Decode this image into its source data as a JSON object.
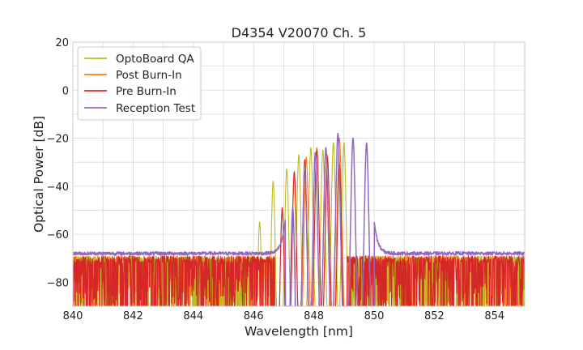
{
  "chart_data": {
    "type": "line",
    "title": "D4354 V20070 Ch. 5",
    "xlabel": "Wavelength [nm]",
    "ylabel": "Optical Power [dB]",
    "xlim": [
      840,
      855
    ],
    "ylim": [
      -90,
      20
    ],
    "x_ticks": [
      840,
      842,
      844,
      846,
      848,
      850,
      852,
      854
    ],
    "y_ticks": [
      -80,
      -60,
      -40,
      -20,
      0,
      20
    ],
    "x_tick_labels": [
      "840",
      "842",
      "844",
      "846",
      "848",
      "850",
      "852",
      "854"
    ],
    "y_tick_labels": [
      "−80",
      "−60",
      "−40",
      "−20",
      "0",
      "20"
    ],
    "grid": true,
    "legend_position": "top-left",
    "noise_floor_db": -68,
    "series": [
      {
        "name": "OptoBoard QA",
        "color": "#bcbd22",
        "peaks": [
          {
            "x": 846.2,
            "y": -55
          },
          {
            "x": 846.65,
            "y": -38
          },
          {
            "x": 847.1,
            "y": -33
          },
          {
            "x": 847.5,
            "y": -27
          },
          {
            "x": 847.9,
            "y": -24
          },
          {
            "x": 848.3,
            "y": -25
          },
          {
            "x": 848.65,
            "y": -22
          },
          {
            "x": 849.0,
            "y": -22
          }
        ]
      },
      {
        "name": "Post Burn-In",
        "color": "#ff7f0e",
        "peaks": [
          {
            "x": 846.95,
            "y": -50
          },
          {
            "x": 847.35,
            "y": -36
          },
          {
            "x": 847.75,
            "y": -28
          },
          {
            "x": 848.1,
            "y": -24
          },
          {
            "x": 848.45,
            "y": -27
          },
          {
            "x": 848.85,
            "y": -20
          }
        ]
      },
      {
        "name": "Pre Burn-In",
        "color": "#d62728",
        "peaks": [
          {
            "x": 846.95,
            "y": -49
          },
          {
            "x": 847.35,
            "y": -34
          },
          {
            "x": 847.7,
            "y": -29
          },
          {
            "x": 848.1,
            "y": -25
          },
          {
            "x": 848.45,
            "y": -28
          },
          {
            "x": 848.85,
            "y": -31
          }
        ]
      },
      {
        "name": "Reception Test",
        "color": "#9467bd",
        "peaks": [
          {
            "x": 847.3,
            "y": -49
          },
          {
            "x": 847.7,
            "y": -34
          },
          {
            "x": 848.05,
            "y": -26
          },
          {
            "x": 848.4,
            "y": -24
          },
          {
            "x": 848.8,
            "y": -18
          },
          {
            "x": 849.3,
            "y": -20
          },
          {
            "x": 849.75,
            "y": -22
          }
        ]
      }
    ]
  }
}
